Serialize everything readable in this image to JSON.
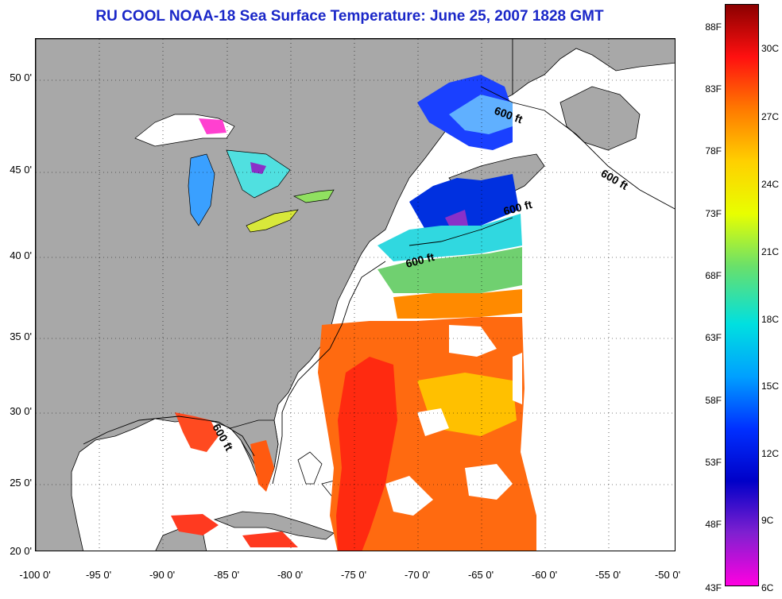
{
  "title": "RU COOL  NOAA-18  Sea Surface Temperature:  June 25, 2007 1828 GMT",
  "map": {
    "lon_range": [
      -100,
      -50
    ],
    "lat_range": [
      20,
      52.5
    ],
    "land_color": "#a8a8a8",
    "water_color": "#ffffff",
    "grid": "dotted",
    "lat_ticks": [
      {
        "lat": 50,
        "label": "50 0'"
      },
      {
        "lat": 45,
        "label": "45 0'"
      },
      {
        "lat": 40,
        "label": "40 0'"
      },
      {
        "lat": 35,
        "label": "35 0'"
      },
      {
        "lat": 30,
        "label": "30 0'"
      },
      {
        "lat": 25,
        "label": "25 0'"
      },
      {
        "lat": 20,
        "label": "20 0'"
      }
    ],
    "lon_ticks": [
      {
        "lon": -100,
        "label": "-100 0'"
      },
      {
        "lon": -95,
        "label": "-95 0'"
      },
      {
        "lon": -90,
        "label": "-90 0'"
      },
      {
        "lon": -85,
        "label": "-85 0'"
      },
      {
        "lon": -80,
        "label": "-80 0'"
      },
      {
        "lon": -75,
        "label": "-75 0'"
      },
      {
        "lon": -70,
        "label": "-70 0'"
      },
      {
        "lon": -65,
        "label": "-65 0'"
      },
      {
        "lon": -60,
        "label": "-60 0'"
      },
      {
        "lon": -55,
        "label": "-55 0'"
      },
      {
        "lon": -50,
        "label": "-50 0'"
      }
    ],
    "isobath_labels": [
      "600 ft",
      "600 ft",
      "600 ft",
      "600 ft",
      "600 ft"
    ]
  },
  "colorbar": {
    "fahrenheit_labels": [
      "88F",
      "83F",
      "78F",
      "73F",
      "68F",
      "63F",
      "58F",
      "53F",
      "48F",
      "43F"
    ],
    "celsius_labels": [
      "30C",
      "27C",
      "24C",
      "21C",
      "18C",
      "15C",
      "12C",
      "9C",
      "6C"
    ],
    "colors_top_to_bottom": [
      "#8b0000",
      "#ff1010",
      "#ff7a00",
      "#ffd000",
      "#e8ff00",
      "#6ae06a",
      "#00e0e0",
      "#00a0ff",
      "#0030ff",
      "#0000c8",
      "#8020d0",
      "#ff00e0"
    ]
  }
}
